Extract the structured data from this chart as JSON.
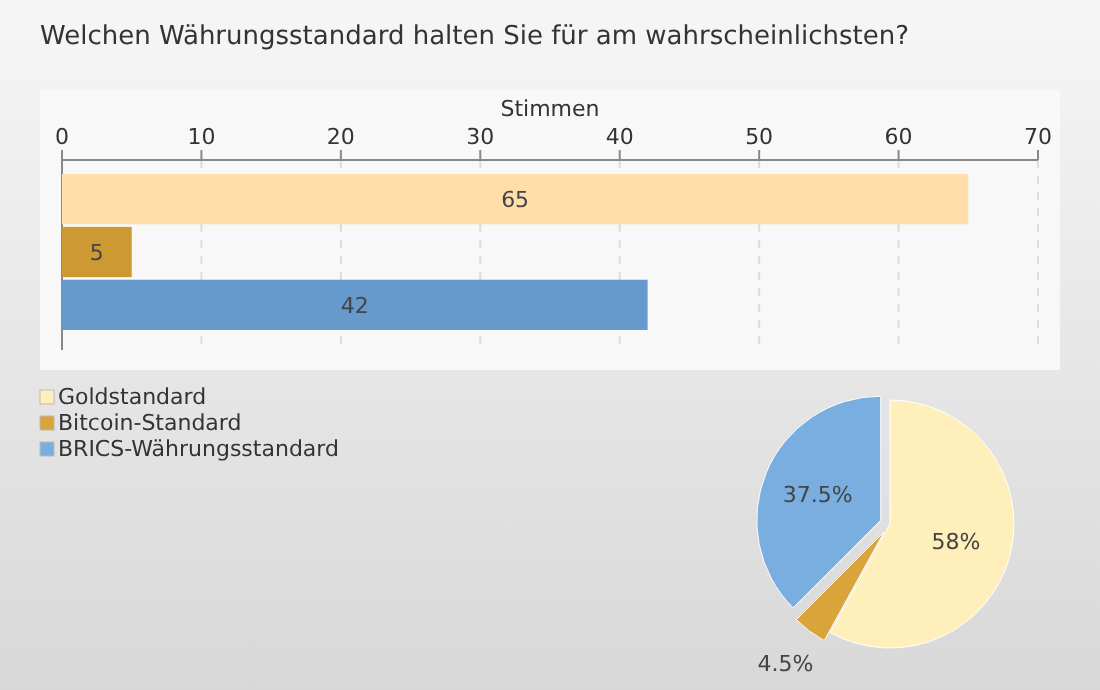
{
  "chart_data": [
    {
      "type": "bar",
      "title": "Welchen Währungsstandard halten Sie für am wahrscheinlichsten?",
      "orientation": "horizontal",
      "xlabel": "Stimmen",
      "categories": [
        null,
        null,
        null
      ],
      "values": [
        65,
        5,
        42
      ],
      "colors": [
        "#ffdeaa",
        "#cc9933",
        "#6699cc"
      ],
      "xlim": [
        0,
        70
      ],
      "xticks": [
        0,
        10,
        20,
        30,
        40,
        50,
        60,
        70
      ],
      "grid": "x",
      "data_labels": true
    },
    {
      "type": "pie",
      "categories": [
        "Goldstandard",
        "Bitcoin-Standard",
        "BRICS-Währungsstandard"
      ],
      "values": [
        58,
        4.5,
        37.5
      ],
      "value_labels": [
        "58%",
        "4.5%",
        "37.5%"
      ],
      "colors": [
        "#fff0bb",
        "#d9a43a",
        "#7aaee0"
      ],
      "legend": "left"
    }
  ]
}
